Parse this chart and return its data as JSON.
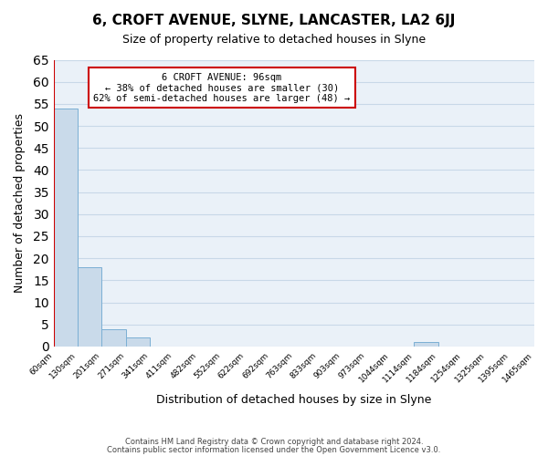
{
  "title": "6, CROFT AVENUE, SLYNE, LANCASTER, LA2 6JJ",
  "subtitle": "Size of property relative to detached houses in Slyne",
  "bar_values": [
    54,
    18,
    4,
    2,
    0,
    0,
    0,
    0,
    0,
    0,
    0,
    0,
    0,
    0,
    0,
    1,
    0,
    0,
    0,
    0
  ],
  "bin_labels": [
    "60sqm",
    "130sqm",
    "201sqm",
    "271sqm",
    "341sqm",
    "411sqm",
    "482sqm",
    "552sqm",
    "622sqm",
    "692sqm",
    "763sqm",
    "833sqm",
    "903sqm",
    "973sqm",
    "1044sqm",
    "1114sqm",
    "1184sqm",
    "1254sqm",
    "1325sqm",
    "1395sqm",
    "1465sqm"
  ],
  "xlabel": "Distribution of detached houses by size in Slyne",
  "ylabel": "Number of detached properties",
  "ylim": [
    0,
    65
  ],
  "yticks": [
    0,
    5,
    10,
    15,
    20,
    25,
    30,
    35,
    40,
    45,
    50,
    55,
    60,
    65
  ],
  "bar_color": "#c9daea",
  "bar_edge_color": "#7bafd4",
  "grid_color": "#c8d8e8",
  "bg_color": "#eaf1f8",
  "annotation_box_color": "#cc0000",
  "vline_color": "#cc0000",
  "vline_x": 0.0,
  "annotation_title": "6 CROFT AVENUE: 96sqm",
  "annotation_line1": "← 38% of detached houses are smaller (30)",
  "annotation_line2": "62% of semi-detached houses are larger (48) →",
  "footer1": "Contains HM Land Registry data © Crown copyright and database right 2024.",
  "footer2": "Contains public sector information licensed under the Open Government Licence v3.0."
}
